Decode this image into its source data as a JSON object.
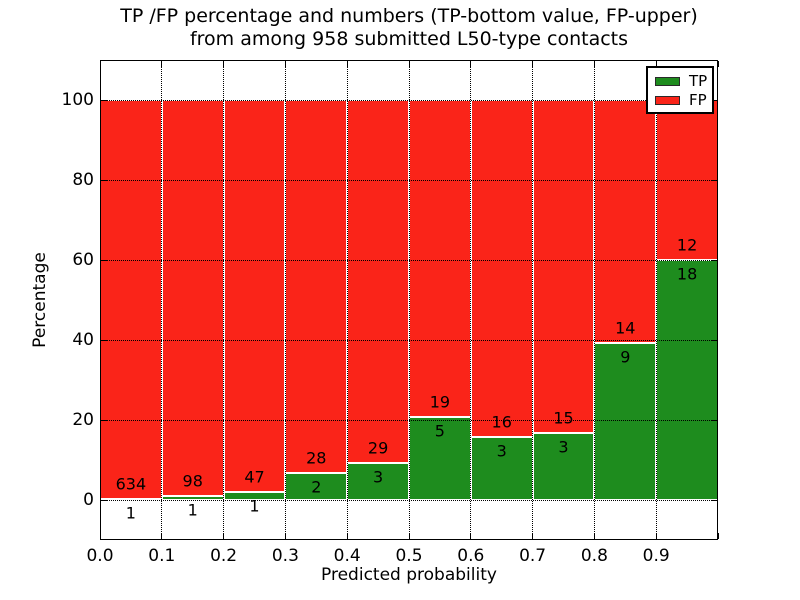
{
  "chart_data": {
    "type": "bar",
    "stacked": true,
    "title": "TP /FP percentage and numbers (TP-bottom value, FP-upper)\nfrom among 958 submitted L50-type contacts",
    "title_lines": [
      "TP /FP percentage and numbers (TP-bottom value, FP-upper)",
      "from among 958 submitted L50-type contacts"
    ],
    "total_submitted_contacts": 958,
    "xlabel": "Predicted probability",
    "ylabel": "Percentage",
    "xlim": [
      0.0,
      1.0
    ],
    "ylim": [
      -10,
      110
    ],
    "bin_width": 0.1,
    "bin_starts": [
      0.0,
      0.1,
      0.2,
      0.3,
      0.4,
      0.5,
      0.6,
      0.7,
      0.8,
      0.9
    ],
    "series": [
      {
        "name": "TP",
        "color": "#1e8c1e",
        "counts": [
          1,
          1,
          1,
          2,
          3,
          5,
          3,
          3,
          9,
          18
        ]
      },
      {
        "name": "FP",
        "color": "#fa2419",
        "counts": [
          634,
          98,
          47,
          28,
          29,
          19,
          16,
          15,
          14,
          12
        ]
      }
    ],
    "tp_percent": [
      0.16,
      1.01,
      2.08,
      6.67,
      9.38,
      20.83,
      15.79,
      16.67,
      39.13,
      60.0
    ],
    "bar_total_percent": 100,
    "xtick_values": [
      0.0,
      0.1,
      0.2,
      0.3,
      0.4,
      0.5,
      0.6,
      0.7,
      0.8,
      0.9
    ],
    "xtick_labels": [
      "0.0",
      "0.1",
      "0.2",
      "0.3",
      "0.4",
      "0.5",
      "0.6",
      "0.7",
      "0.8",
      "0.9"
    ],
    "ytick_values": [
      0,
      20,
      40,
      60,
      80,
      100
    ],
    "ytick_labels": [
      "0",
      "20",
      "40",
      "60",
      "80",
      "100"
    ],
    "grid": true,
    "grid_style": "dotted",
    "bar_edge_color": "#ffffff",
    "background_color": "#ffffff",
    "legend": {
      "position": "upper right",
      "entries": [
        {
          "label": "TP",
          "color": "#1e8c1e"
        },
        {
          "label": "FP",
          "color": "#fa2419"
        }
      ]
    }
  }
}
